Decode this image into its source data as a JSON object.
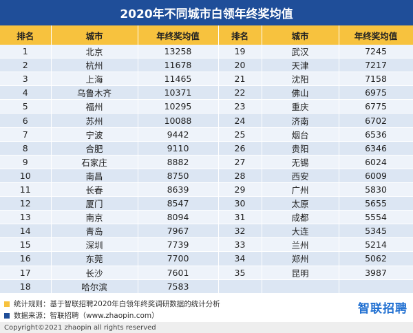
{
  "title": "2020年不同城市白领年终奖均值",
  "headers": [
    "排名",
    "城市",
    "年终奖均值",
    "排名",
    "城市",
    "年终奖均值"
  ],
  "rows": [
    [
      "1",
      "北京",
      "13258",
      "19",
      "武汉",
      "7245"
    ],
    [
      "2",
      "杭州",
      "11678",
      "20",
      "天津",
      "7217"
    ],
    [
      "3",
      "上海",
      "11465",
      "21",
      "沈阳",
      "7158"
    ],
    [
      "4",
      "乌鲁木齐",
      "10371",
      "22",
      "佛山",
      "6975"
    ],
    [
      "5",
      "福州",
      "10295",
      "23",
      "重庆",
      "6775"
    ],
    [
      "6",
      "苏州",
      "10088",
      "24",
      "济南",
      "6702"
    ],
    [
      "7",
      "宁波",
      "9442",
      "25",
      "烟台",
      "6536"
    ],
    [
      "8",
      "合肥",
      "9110",
      "26",
      "贵阳",
      "6346"
    ],
    [
      "9",
      "石家庄",
      "8882",
      "27",
      "无锡",
      "6024"
    ],
    [
      "10",
      "南昌",
      "8750",
      "28",
      "西安",
      "6009"
    ],
    [
      "11",
      "长春",
      "8639",
      "29",
      "广州",
      "5830"
    ],
    [
      "12",
      "厦门",
      "8547",
      "30",
      "太原",
      "5655"
    ],
    [
      "13",
      "南京",
      "8094",
      "31",
      "成都",
      "5554"
    ],
    [
      "14",
      "青岛",
      "7967",
      "32",
      "大连",
      "5345"
    ],
    [
      "15",
      "深圳",
      "7739",
      "33",
      "兰州",
      "5214"
    ],
    [
      "16",
      "东莞",
      "7700",
      "34",
      "郑州",
      "5062"
    ],
    [
      "17",
      "长沙",
      "7601",
      "35",
      "昆明",
      "3987"
    ],
    [
      "18",
      "哈尔滨",
      "7583",
      "",
      "",
      ""
    ]
  ],
  "chart_data": {
    "type": "table",
    "title": "2020年不同城市白领年终奖均值",
    "columns": [
      "排名",
      "城市",
      "年终奖均值"
    ],
    "records": [
      [
        1,
        "北京",
        13258
      ],
      [
        2,
        "杭州",
        11678
      ],
      [
        3,
        "上海",
        11465
      ],
      [
        4,
        "乌鲁木齐",
        10371
      ],
      [
        5,
        "福州",
        10295
      ],
      [
        6,
        "苏州",
        10088
      ],
      [
        7,
        "宁波",
        9442
      ],
      [
        8,
        "合肥",
        9110
      ],
      [
        9,
        "石家庄",
        8882
      ],
      [
        10,
        "南昌",
        8750
      ],
      [
        11,
        "长春",
        8639
      ],
      [
        12,
        "厦门",
        8547
      ],
      [
        13,
        "南京",
        8094
      ],
      [
        14,
        "青岛",
        7967
      ],
      [
        15,
        "深圳",
        7739
      ],
      [
        16,
        "东莞",
        7700
      ],
      [
        17,
        "长沙",
        7601
      ],
      [
        18,
        "哈尔滨",
        7583
      ],
      [
        19,
        "武汉",
        7245
      ],
      [
        20,
        "天津",
        7217
      ],
      [
        21,
        "沈阳",
        7158
      ],
      [
        22,
        "佛山",
        6975
      ],
      [
        23,
        "重庆",
        6775
      ],
      [
        24,
        "济南",
        6702
      ],
      [
        25,
        "烟台",
        6536
      ],
      [
        26,
        "贵阳",
        6346
      ],
      [
        27,
        "无锡",
        6024
      ],
      [
        28,
        "西安",
        6009
      ],
      [
        29,
        "广州",
        5830
      ],
      [
        30,
        "太原",
        5655
      ],
      [
        31,
        "成都",
        5554
      ],
      [
        32,
        "大连",
        5345
      ],
      [
        33,
        "兰州",
        5214
      ],
      [
        34,
        "郑州",
        5062
      ],
      [
        35,
        "昆明",
        3987
      ]
    ]
  },
  "footer": {
    "note1": "统计规则：基于智联招聘2020年白领年终奖调研数据的统计分析",
    "note2": "数据来源：智联招聘（www.zhaopin.com）",
    "copyright": "Copyright©2021 zhaopin all rights reserved",
    "logo_text": "智联招聘"
  },
  "colors": {
    "title_bg": "#1f4e99",
    "header_bg": "#f7c23e",
    "row_even": "#dce6f3",
    "row_odd": "#eef3fa",
    "note1_square": "#f7c23e",
    "note2_square": "#1f4e99",
    "logo": "#1f6fd1"
  }
}
